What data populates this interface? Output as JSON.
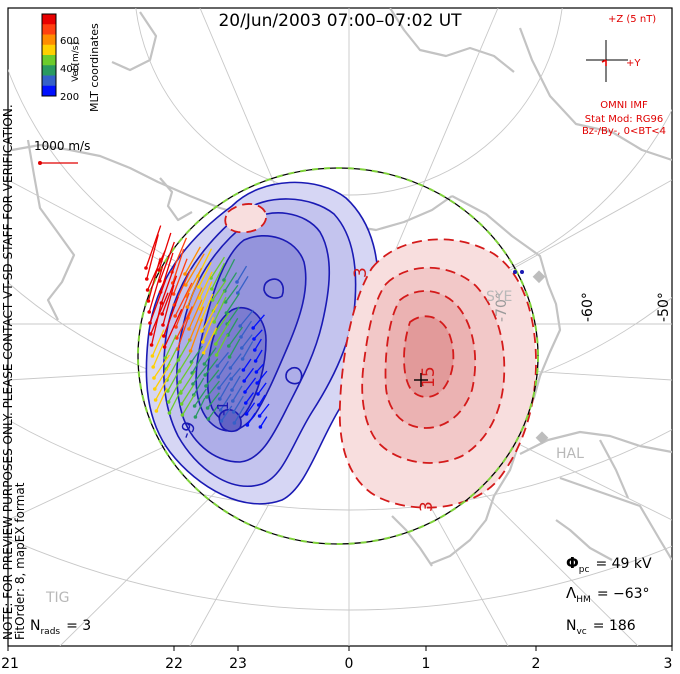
{
  "title": "20/Jun/2003 07:00–07:02 UT",
  "coordinates": "MLT coordinates",
  "note_line1": "NOTE: FOR PREVIEW PURPOSES ONLY. PLEASE CONTACT VT-SD STAFF FOR VERIFICATION.",
  "note_line2": "FitOrder: 8, mapEX format",
  "colorbar": {
    "label": "Vel [m/s]",
    "ticks": [
      "600",
      "400",
      "200"
    ],
    "colors": [
      "#e80000",
      "#ff4010",
      "#ff8c00",
      "#ffd000",
      "#6ccc2c",
      "#2a9a60",
      "#3560c8",
      "#0010ff"
    ]
  },
  "velocity_scale": "1000 m/s",
  "imf": {
    "z_label": "+Z (5 nT)",
    "y_label": "+Y",
    "source": "OMNI IMF",
    "model_line1": "Stat Mod: RG96",
    "model_line2": "Bz-/By-, 0<BT<4"
  },
  "mlt_labels": [
    "21",
    "22",
    "23",
    "0",
    "1",
    "2",
    "3"
  ],
  "lat_labels": [
    "-70°",
    "-60°",
    "-50°"
  ],
  "stations": [
    "SYE",
    "HAL",
    "TIG"
  ],
  "contour_labels": [
    "-9",
    "3",
    "15",
    "3",
    "-1"
  ],
  "stats": {
    "phi_pc_label": "Φ",
    "phi_pc_sub": "pc",
    "phi_pc_value": "= 49 kV",
    "lambda_label": "Λ",
    "lambda_sub": "HM",
    "lambda_value": "= −63°",
    "nvc_label": "N",
    "nvc_sub": "vc",
    "nvc_value": "= 186",
    "nrads_label": "N",
    "nrads_sub": "rads",
    "nrads_value": "= 3"
  },
  "colors": {
    "negative_cell": "#1a1ab4",
    "positive_cell": "#d41a1a",
    "hmb": "#7fd23a",
    "coast": "#c8c8c8",
    "imf_red": "#e00000"
  }
}
